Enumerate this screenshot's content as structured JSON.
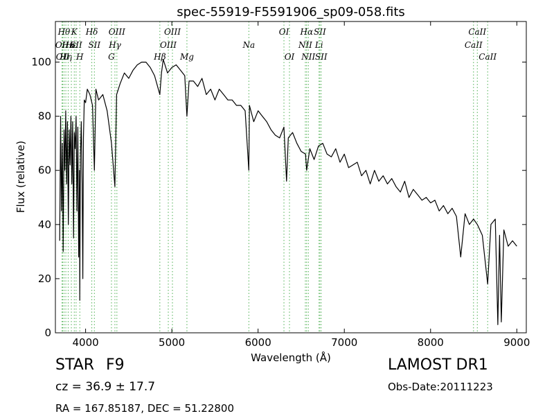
{
  "chart_data": {
    "type": "line",
    "title": "spec-55919-F5591906_sp09-058.fits",
    "xlabel": "Wavelength (Å)",
    "ylabel": "Flux (relative)",
    "xlim": [
      3650,
      9110
    ],
    "ylim": [
      0,
      115
    ],
    "xticks": [
      4000,
      5000,
      6000,
      7000,
      8000,
      9000
    ],
    "yticks": [
      0,
      20,
      40,
      60,
      80,
      100
    ],
    "grid": false,
    "legend": "none",
    "colors": {
      "line": "#000000",
      "markers": "#4caf50"
    },
    "series": [
      {
        "x": [
          3700,
          3710,
          3720,
          3730,
          3740,
          3750,
          3760,
          3770,
          3780,
          3790,
          3800,
          3810,
          3820,
          3830,
          3840,
          3850,
          3860,
          3870,
          3880,
          3890,
          3900,
          3910,
          3920,
          3930,
          3933,
          3940,
          3950,
          3960,
          3968,
          3975,
          3985,
          4000,
          4020,
          4050,
          4080,
          4102,
          4120,
          4150,
          4200,
          4250,
          4300,
          4340,
          4360,
          4400,
          4450,
          4500,
          4550,
          4600,
          4650,
          4700,
          4750,
          4800,
          4861,
          4880,
          4900,
          4950,
          5000,
          5050,
          5100,
          5150,
          5175,
          5200,
          5250,
          5300,
          5350,
          5400,
          5450,
          5500,
          5550,
          5600,
          5650,
          5700,
          5750,
          5800,
          5850,
          5893,
          5900,
          5950,
          6000,
          6050,
          6100,
          6150,
          6200,
          6250,
          6300,
          6330,
          6350,
          6400,
          6450,
          6500,
          6550,
          6563,
          6600,
          6650,
          6700,
          6750,
          6800,
          6850,
          6900,
          6950,
          7000,
          7050,
          7100,
          7150,
          7200,
          7250,
          7300,
          7350,
          7400,
          7450,
          7500,
          7550,
          7600,
          7650,
          7700,
          7750,
          7800,
          7850,
          7900,
          7950,
          8000,
          8050,
          8100,
          8150,
          8200,
          8250,
          8300,
          8350,
          8400,
          8450,
          8498,
          8542,
          8600,
          8662,
          8700,
          8750,
          8780,
          8800,
          8820,
          8850,
          8900,
          8950,
          9000
        ],
        "y": [
          34,
          80,
          45,
          70,
          30,
          75,
          60,
          82,
          55,
          78,
          40,
          75,
          62,
          80,
          55,
          78,
          35,
          74,
          68,
          80,
          45,
          76,
          28,
          60,
          12,
          65,
          78,
          55,
          20,
          72,
          86,
          85,
          90,
          88,
          84,
          60,
          90,
          86,
          88,
          82,
          70,
          54,
          88,
          92,
          96,
          94,
          97,
          99,
          100,
          100,
          98,
          95,
          88,
          96,
          101,
          96,
          98,
          99,
          97,
          95,
          80,
          93,
          93,
          91,
          94,
          88,
          90,
          86,
          90,
          88,
          86,
          86,
          84,
          84,
          82,
          60,
          84,
          78,
          82,
          80,
          78,
          75,
          73,
          72,
          76,
          56,
          72,
          74,
          70,
          67,
          66,
          60,
          68,
          64,
          69,
          70,
          66,
          65,
          68,
          63,
          66,
          61,
          62,
          63,
          58,
          60,
          55,
          60,
          56,
          58,
          55,
          57,
          54,
          52,
          56,
          50,
          53,
          51,
          49,
          50,
          48,
          49,
          45,
          47,
          44,
          46,
          43,
          28,
          44,
          40,
          42,
          40,
          36,
          18,
          40,
          42,
          3,
          36,
          4,
          38,
          32,
          34,
          32
        ]
      }
    ],
    "line_markers": [
      {
        "x": 3727,
        "label": "OII",
        "row": 2
      },
      {
        "x": 3734,
        "label": "OII",
        "row": 3
      },
      {
        "x": 3750,
        "label": "Hθ",
        "row": 1
      },
      {
        "x": 3771,
        "label": "Hη",
        "row": 3
      },
      {
        "x": 3798,
        "label": "Hκ",
        "row": 2
      },
      {
        "x": 3835,
        "label": "Hε",
        "row": 2
      },
      {
        "x": 3869,
        "label": "K",
        "row": 1
      },
      {
        "x": 3890,
        "label": "SII",
        "row": 2
      },
      {
        "x": 3933,
        "label": "H",
        "row": 3
      },
      {
        "x": 4072,
        "label": "Hδ",
        "row": 1
      },
      {
        "x": 4102,
        "label": "SII",
        "row": 2
      },
      {
        "x": 4300,
        "label": "G",
        "row": 3
      },
      {
        "x": 4340,
        "label": "Hγ",
        "row": 2
      },
      {
        "x": 4363,
        "label": "OIII",
        "row": 1
      },
      {
        "x": 4861,
        "label": "Hβ",
        "row": 3
      },
      {
        "x": 4959,
        "label": "OIII",
        "row": 2
      },
      {
        "x": 5007,
        "label": "OIII",
        "row": 1
      },
      {
        "x": 5175,
        "label": "Mg",
        "row": 3
      },
      {
        "x": 5893,
        "label": "Na",
        "row": 2
      },
      {
        "x": 6300,
        "label": "OI",
        "row": 1
      },
      {
        "x": 6364,
        "label": "OI",
        "row": 3
      },
      {
        "x": 6548,
        "label": "NII",
        "row": 2
      },
      {
        "x": 6563,
        "label": "Hα",
        "row": 1
      },
      {
        "x": 6583,
        "label": "NII",
        "row": 3
      },
      {
        "x": 6707,
        "label": "Li",
        "row": 2
      },
      {
        "x": 6716,
        "label": "SII",
        "row": 1
      },
      {
        "x": 6731,
        "label": "SII",
        "row": 3
      },
      {
        "x": 8498,
        "label": "CaII",
        "row": 2
      },
      {
        "x": 8542,
        "label": "CaII",
        "row": 1
      },
      {
        "x": 8662,
        "label": "CaII",
        "row": 3
      }
    ]
  },
  "info": {
    "object_type": "STAR",
    "subclass": "F9",
    "redshift": "cz = 36.9  ± 17.7",
    "survey": "LAMOST DR1",
    "obs_date": "Obs-Date:20111223",
    "coords": "RA = 167.85187, DEC = 51.22800"
  }
}
